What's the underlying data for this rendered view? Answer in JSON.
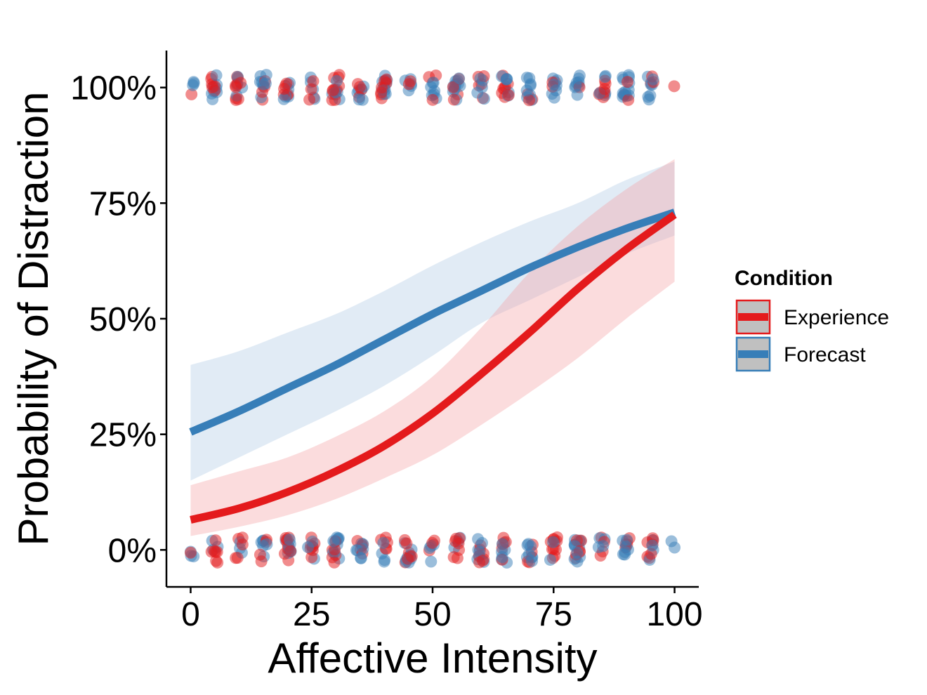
{
  "colors": {
    "experience": "#e41a1c",
    "forecast": "#377eb8",
    "axis": "#000000",
    "legend_key_bg": "#c0c0c0"
  },
  "chart_data": {
    "type": "line",
    "title": "",
    "xlabel": "Affective Intensity",
    "ylabel": "Probability of Distraction",
    "xlim": [
      -5,
      105
    ],
    "ylim": [
      -0.08,
      1.08
    ],
    "x_ticks": [
      0,
      25,
      50,
      75,
      100
    ],
    "x_tick_labels": [
      "0",
      "25",
      "50",
      "75",
      "100"
    ],
    "y_ticks": [
      0,
      0.25,
      0.5,
      0.75,
      1.0
    ],
    "y_tick_labels": [
      "0%",
      "25%",
      "50%",
      "75%",
      "100%"
    ],
    "grid": false,
    "legend": {
      "title": "Condition",
      "position": "right",
      "entries": [
        "Experience",
        "Forecast"
      ]
    },
    "x": [
      0,
      10,
      20,
      30,
      40,
      50,
      60,
      70,
      80,
      90,
      100
    ],
    "series": [
      {
        "name": "Experience",
        "color": "#e41a1c",
        "fit": [
          0.065,
          0.09,
          0.125,
          0.17,
          0.225,
          0.295,
          0.38,
          0.47,
          0.565,
          0.65,
          0.725
        ],
        "ci_low": [
          0.03,
          0.05,
          0.075,
          0.11,
          0.155,
          0.205,
          0.27,
          0.34,
          0.415,
          0.5,
          0.58
        ],
        "ci_high": [
          0.14,
          0.17,
          0.2,
          0.245,
          0.3,
          0.375,
          0.48,
          0.6,
          0.7,
          0.78,
          0.845
        ]
      },
      {
        "name": "Forecast",
        "color": "#377eb8",
        "fit": [
          0.255,
          0.3,
          0.35,
          0.4,
          0.455,
          0.51,
          0.56,
          0.61,
          0.655,
          0.695,
          0.73
        ],
        "ci_low": [
          0.15,
          0.2,
          0.25,
          0.3,
          0.355,
          0.42,
          0.49,
          0.54,
          0.59,
          0.64,
          0.68
        ],
        "ci_high": [
          0.4,
          0.43,
          0.47,
          0.51,
          0.56,
          0.615,
          0.665,
          0.71,
          0.75,
          0.8,
          0.84
        ]
      }
    ],
    "points_note_excluded": true
  }
}
